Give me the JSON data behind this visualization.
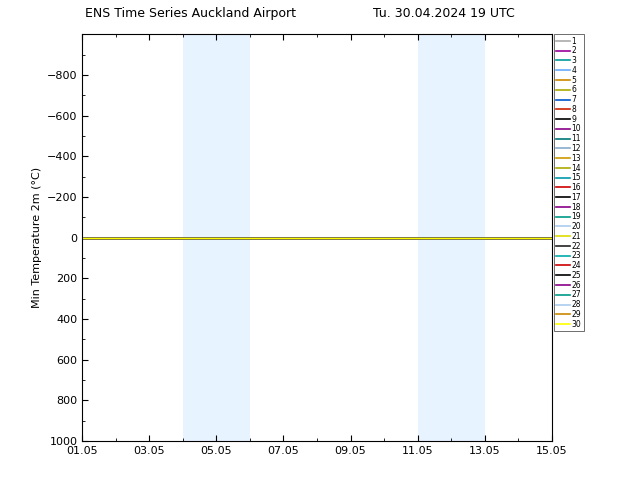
{
  "title_left": "ENS Time Series Auckland Airport",
  "title_right": "Tu. 30.04.2024 19 UTC",
  "ylabel": "Min Temperature 2m (°C)",
  "ylim": [
    -1000,
    1000
  ],
  "yticks": [
    -800,
    -600,
    -400,
    -200,
    0,
    200,
    400,
    600,
    800,
    1000
  ],
  "xlim": [
    0,
    14
  ],
  "xtick_labels": [
    "01.05",
    "03.05",
    "05.05",
    "07.05",
    "09.05",
    "11.05",
    "13.05",
    "15.05"
  ],
  "xtick_positions": [
    0,
    2,
    4,
    6,
    8,
    10,
    12,
    14
  ],
  "shade_regions": [
    [
      3.0,
      4.0
    ],
    [
      4.0,
      5.0
    ],
    [
      10.0,
      11.0
    ],
    [
      11.0,
      12.0
    ]
  ],
  "ensemble_value": 0,
  "n_members": 30,
  "member_colors": [
    "#aaaaaa",
    "#990099",
    "#009999",
    "#66aaff",
    "#cc8800",
    "#aaaa00",
    "#0055cc",
    "#cc2200",
    "#000000",
    "#880088",
    "#007777",
    "#88aacc",
    "#cc9900",
    "#aaaa00",
    "#0099aa",
    "#cc0000",
    "#000000",
    "#880088",
    "#009988",
    "#aaccee",
    "#dddd00",
    "#222222",
    "#00aaaa",
    "#cc0000",
    "#000000",
    "#880088",
    "#009988",
    "#aaccee",
    "#cc8800",
    "#ffff00"
  ],
  "line_widths": [
    1,
    1,
    1,
    1,
    1,
    1,
    1,
    1,
    1,
    1,
    1,
    1,
    1,
    1,
    1,
    1,
    1,
    1,
    1,
    1,
    1,
    2,
    1,
    1,
    1,
    1,
    1,
    1,
    1,
    1
  ],
  "background_color": "#ffffff",
  "shade_color": "#ddeeff",
  "shade_alpha": 0.7,
  "figsize": [
    6.34,
    4.9
  ],
  "dpi": 100
}
